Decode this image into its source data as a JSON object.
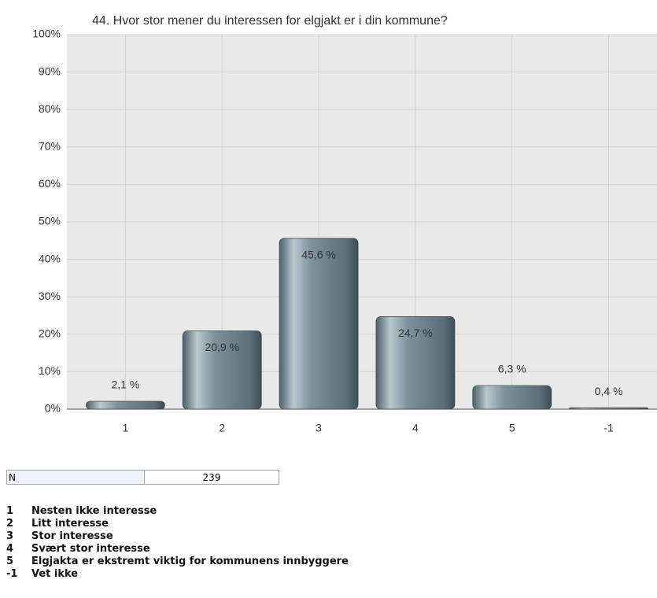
{
  "chart_data": {
    "type": "bar",
    "title": "44. Hvor stor mener du interessen for elgjakt er i din kommune?",
    "categories": [
      "1",
      "2",
      "3",
      "4",
      "5",
      "-1"
    ],
    "values": [
      2.1,
      20.9,
      45.6,
      24.7,
      6.3,
      0.4
    ],
    "value_labels": [
      "2,1 %",
      "20,9 %",
      "45,6 %",
      "24,7 %",
      "6,3 %",
      "0,4 %"
    ],
    "color": "#6b7f89",
    "ylim": [
      0,
      100
    ],
    "yticks": [
      {
        "value": 0,
        "label": "0%"
      },
      {
        "value": 10,
        "label": "10%"
      },
      {
        "value": 20,
        "label": "20%"
      },
      {
        "value": 30,
        "label": "30%"
      },
      {
        "value": 40,
        "label": "40%"
      },
      {
        "value": 50,
        "label": "50%"
      },
      {
        "value": 60,
        "label": "60%"
      },
      {
        "value": 70,
        "label": "70%"
      },
      {
        "value": 80,
        "label": "80%"
      },
      {
        "value": 90,
        "label": "90%"
      },
      {
        "value": 100,
        "label": "100%"
      }
    ],
    "grid": true
  },
  "summary": {
    "label": "N",
    "value": 239
  },
  "legend": [
    {
      "code": "1",
      "text": "Nesten ikke interesse"
    },
    {
      "code": "2",
      "text": "Litt interesse"
    },
    {
      "code": "3",
      "text": "Stor interesse"
    },
    {
      "code": "4",
      "text": "Svært stor interesse"
    },
    {
      "code": "5",
      "text": "Elgjakta er ekstremt viktig for kommunens innbyggere"
    },
    {
      "code": "-1",
      "text": "Vet ikke"
    }
  ]
}
